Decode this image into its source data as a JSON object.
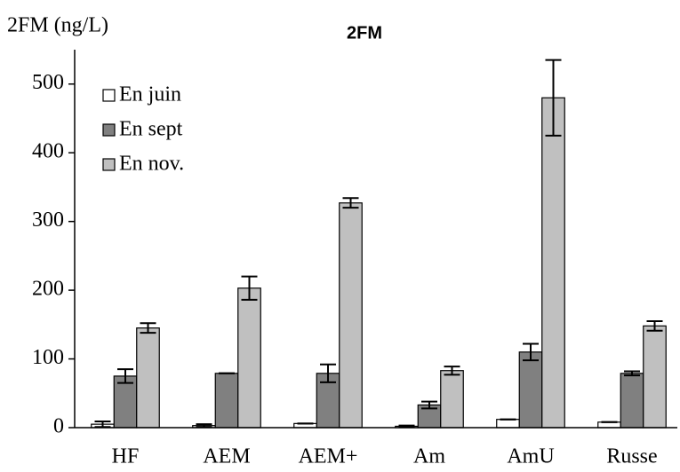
{
  "chart_data": {
    "type": "bar",
    "title": "2FM",
    "y_label": "2FM (ng/L)",
    "categories": [
      "HF",
      "AEM",
      "AEM+",
      "Am",
      "AmU",
      "Russe"
    ],
    "series": [
      {
        "name": "En juin",
        "color": "#ffffff",
        "values": [
          5,
          3,
          6,
          2,
          12,
          8
        ],
        "errors": [
          4,
          2,
          0,
          1,
          0,
          0
        ]
      },
      {
        "name": "En sept",
        "color": "#808080",
        "values": [
          75,
          79,
          79,
          33,
          110,
          79
        ],
        "errors": [
          10,
          0,
          13,
          5,
          12,
          3
        ]
      },
      {
        "name": "En nov.",
        "color": "#c0c0c0",
        "values": [
          145,
          203,
          327,
          83,
          480,
          148
        ],
        "errors": [
          7,
          17,
          7,
          6,
          55,
          7
        ]
      }
    ],
    "ylim": [
      0,
      550
    ],
    "yticks": [
      0,
      100,
      200,
      300,
      400,
      500
    ],
    "grid": false,
    "legend": "upper left"
  }
}
